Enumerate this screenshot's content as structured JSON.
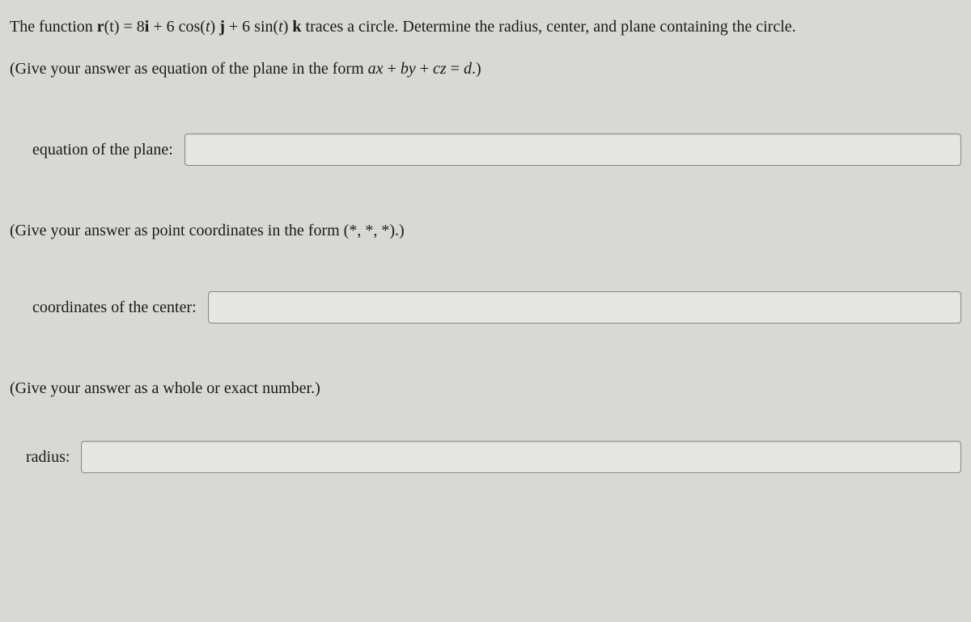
{
  "problem": {
    "prefix": "The function ",
    "func_lhs": "r",
    "func_arg": "(t) = 8",
    "vec_i": "i",
    "plus1": " + 6 cos(",
    "t1": "t",
    "after_t1": ") ",
    "vec_j": "j",
    "plus2": " + 6 sin(",
    "t2": "t",
    "after_t2": ") ",
    "vec_k": "k",
    "suffix": " traces a circle. Determine the radius, center, and plane containing the circle."
  },
  "hint1": {
    "prefix": "(Give your answer as equation of the plane in the form ",
    "eq_a": "ax",
    "plus_a": " + ",
    "eq_b": "by",
    "plus_b": " + ",
    "eq_c": "cz",
    "equals": " = ",
    "eq_d": "d",
    "suffix": ".)"
  },
  "label1": "equation of the plane:",
  "hint2": "(Give your answer as point coordinates in the form (*, *, *).)",
  "label2": "coordinates of the center:",
  "hint3": "(Give your answer as a whole or exact number.)",
  "label3": "radius:",
  "inputs": {
    "plane": "",
    "center": "",
    "radius": ""
  }
}
